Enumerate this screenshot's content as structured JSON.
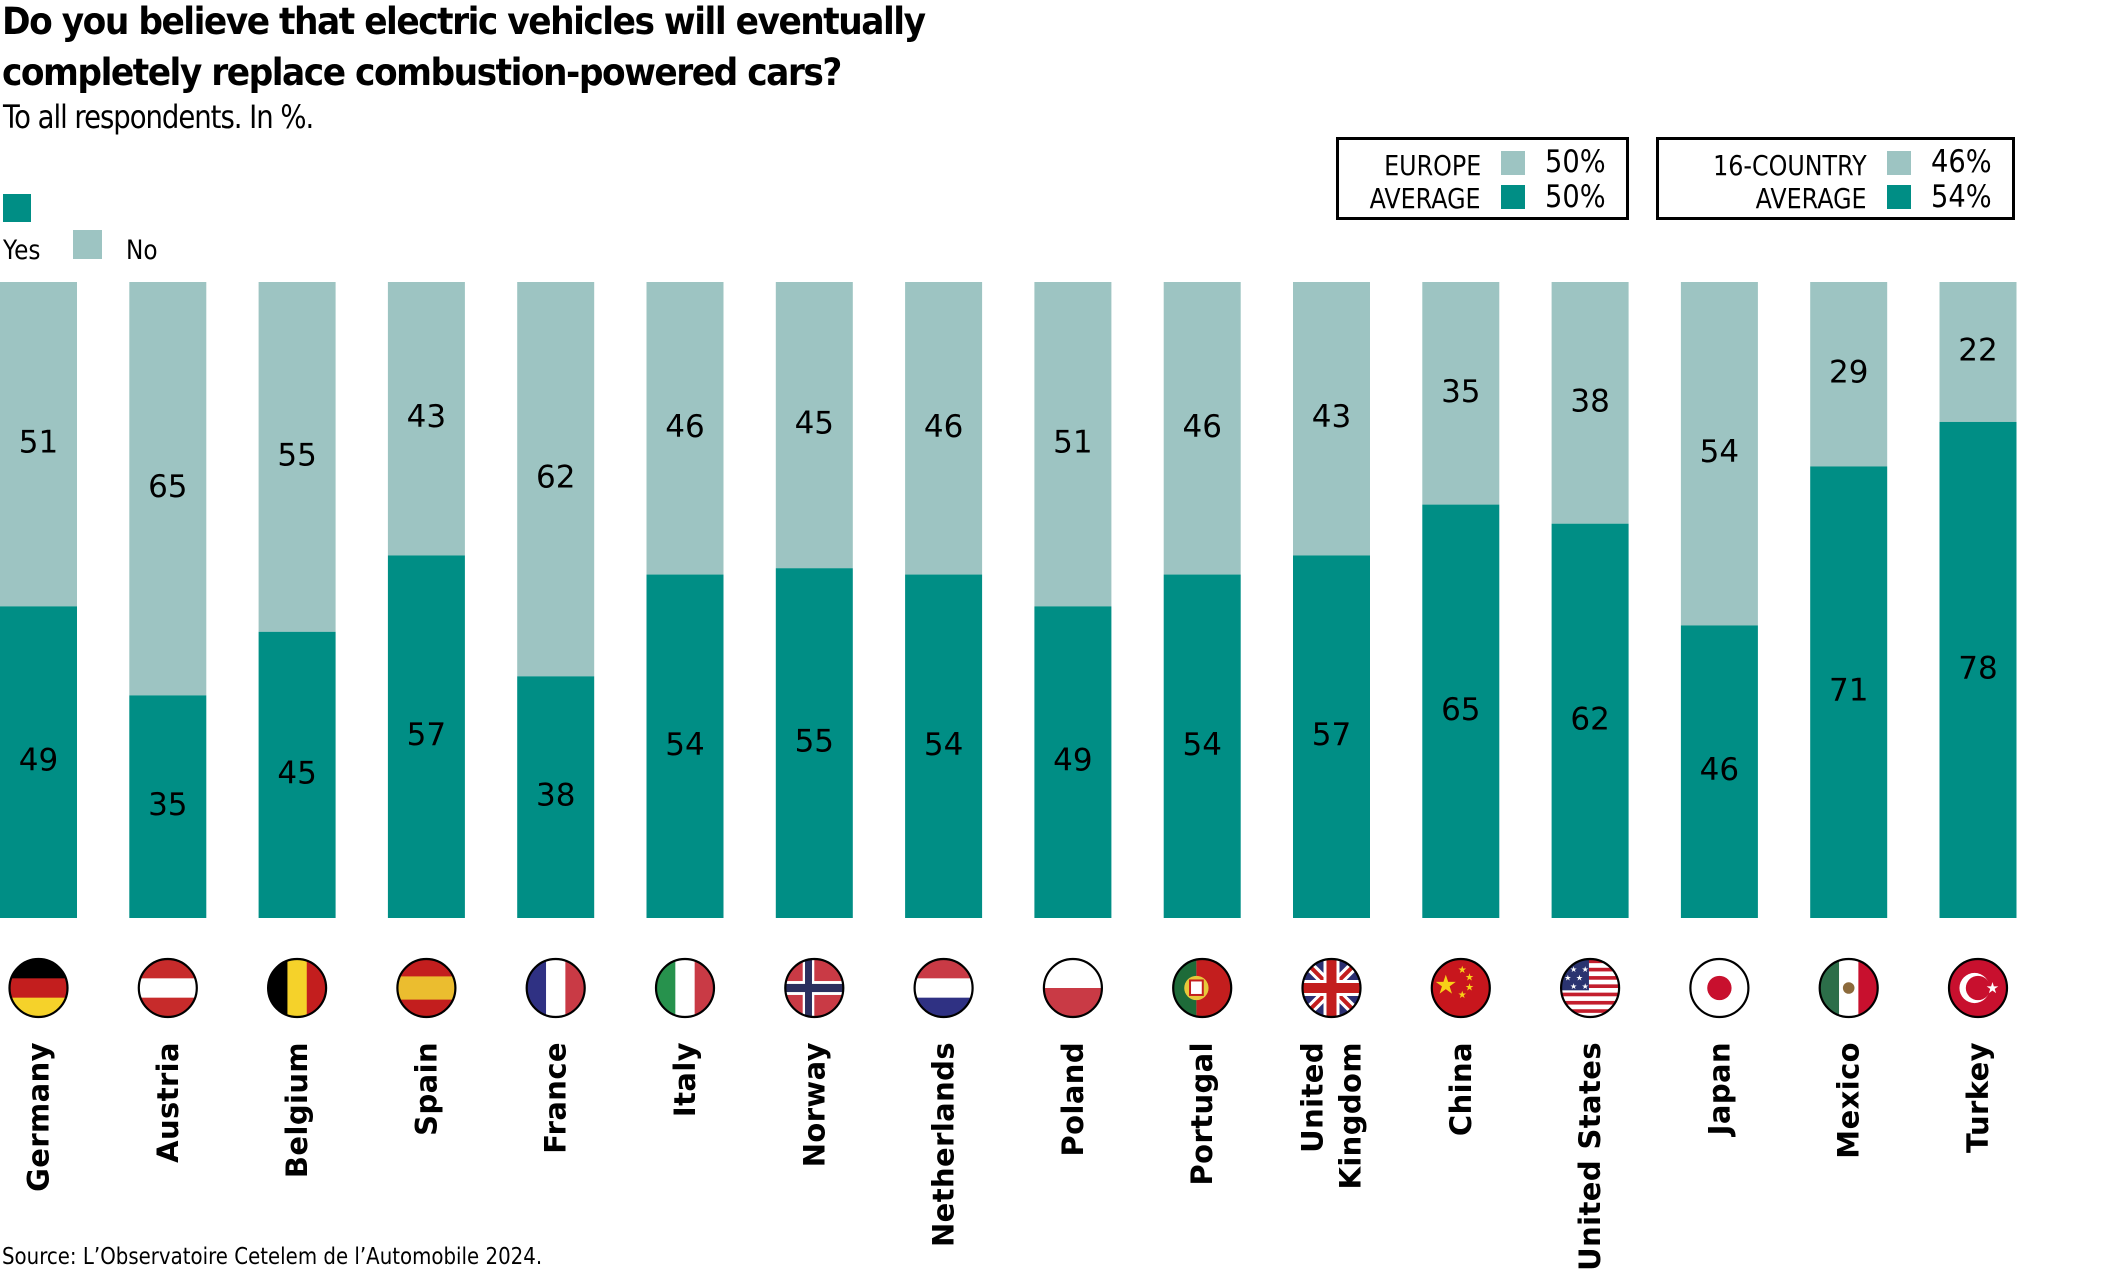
{
  "title_line1": "Do you believe that electric vehicles will eventually",
  "title_line2": "completely replace combustion-powered cars?",
  "subtitle": "To all respondents. In %.",
  "legend": {
    "yes_label": "Yes",
    "no_label": "No"
  },
  "averages": {
    "europe": {
      "label_line1": "EUROPE",
      "label_line2": "AVERAGE",
      "no_value": "50%",
      "yes_value": "50%"
    },
    "sixteen_country": {
      "label_line1": "16-COUNTRY",
      "label_line2": "AVERAGE",
      "no_value": "46%",
      "yes_value": "54%"
    }
  },
  "colors": {
    "yes": "#008e85",
    "no": "#9dc4c2"
  },
  "source": "Source: L’Observatoire Cetelem de l’Automobile 2024.",
  "chart_data": {
    "type": "bar",
    "stacked": true,
    "orientation": "vertical",
    "title": "Do you believe that electric vehicles will eventually completely replace combustion-powered cars?",
    "subtitle": "To all respondents. In %.",
    "xlabel": "",
    "ylabel": "",
    "ylim": [
      0,
      100
    ],
    "grid": false,
    "legend_position": "top-left",
    "categories": [
      "Germany",
      "Austria",
      "Belgium",
      "Spain",
      "France",
      "Italy",
      "Norway",
      "Netherlands",
      "Poland",
      "Portugal",
      "United Kingdom",
      "China",
      "United States",
      "Japan",
      "Mexico",
      "Turkey"
    ],
    "category_label_lines": [
      [
        "Germany"
      ],
      [
        "Austria"
      ],
      [
        "Belgium"
      ],
      [
        "Spain"
      ],
      [
        "France"
      ],
      [
        "Italy"
      ],
      [
        "Norway"
      ],
      [
        "Netherlands"
      ],
      [
        "Poland"
      ],
      [
        "Portugal"
      ],
      [
        "United",
        "Kingdom"
      ],
      [
        "China"
      ],
      [
        "United States"
      ],
      [
        "Japan"
      ],
      [
        "Mexico"
      ],
      [
        "Turkey"
      ]
    ],
    "flags": [
      "flag-germany",
      "flag-austria",
      "flag-belgium",
      "flag-spain",
      "flag-france",
      "flag-italy",
      "flag-norway",
      "flag-netherlands",
      "flag-poland",
      "flag-portugal",
      "flag-united-kingdom",
      "flag-china",
      "flag-united-states",
      "flag-japan",
      "flag-mexico",
      "flag-turkey"
    ],
    "series": [
      {
        "name": "Yes",
        "values": [
          49,
          35,
          45,
          57,
          38,
          54,
          55,
          54,
          49,
          54,
          57,
          65,
          62,
          46,
          71,
          78
        ]
      },
      {
        "name": "No",
        "values": [
          51,
          65,
          55,
          43,
          62,
          46,
          45,
          46,
          51,
          46,
          43,
          35,
          38,
          54,
          29,
          22
        ]
      }
    ],
    "reference_averages": [
      {
        "name": "Europe average",
        "Yes": 50,
        "No": 50
      },
      {
        "name": "16-country average",
        "Yes": 54,
        "No": 46
      }
    ],
    "source": "Source: L’Observatoire Cetelem de l’Automobile 2024."
  }
}
